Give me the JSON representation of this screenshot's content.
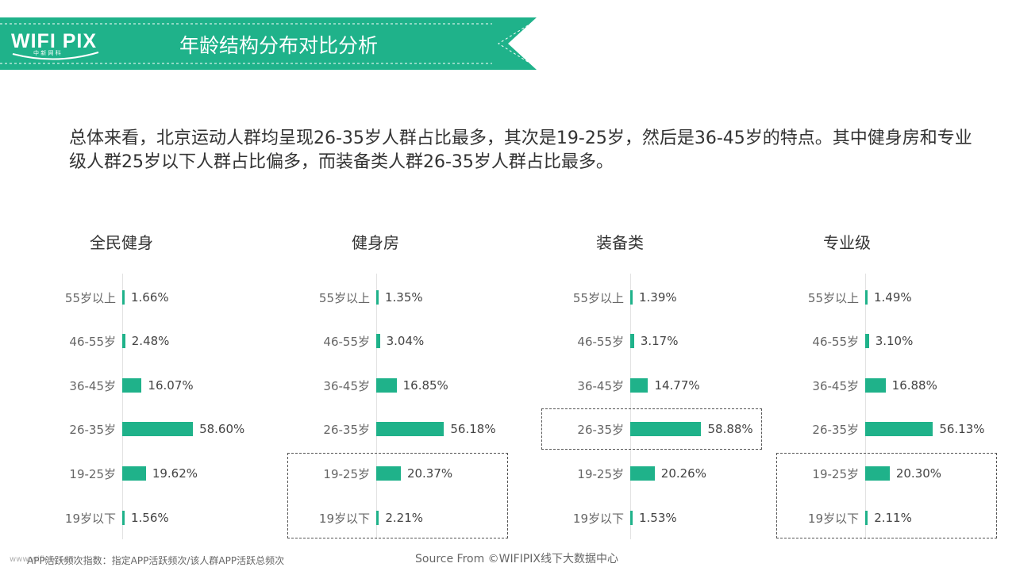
{
  "header": {
    "logo_text": "WIFI PIX",
    "logo_subtext": "中 新 网 科",
    "title": "年龄结构分布对比分析"
  },
  "summary": "总体来看，北京运动人群均呈现26-35岁人群占比最多，其次是19-25岁，然后是36-45岁的特点。其中健身房和专业级人群25岁以下人群占比偏多，而装备类人群26-35岁人群占比最多。",
  "colors": {
    "accent": "#1fb28a",
    "banner": "#1fb28a"
  },
  "chart_data": [
    {
      "type": "bar",
      "title": "全民健身",
      "categories": [
        "55岁以上",
        "46-55岁",
        "36-45岁",
        "26-35岁",
        "19-25岁",
        "19岁以下"
      ],
      "values": [
        1.66,
        2.48,
        16.07,
        58.6,
        19.62,
        1.56
      ],
      "labels": [
        "1.66%",
        "2.48%",
        "16.07%",
        "58.60%",
        "19.62%",
        "1.56%"
      ],
      "highlight": []
    },
    {
      "type": "bar",
      "title": "健身房",
      "categories": [
        "55岁以上",
        "46-55岁",
        "36-45岁",
        "26-35岁",
        "19-25岁",
        "19岁以下"
      ],
      "values": [
        1.35,
        3.04,
        16.85,
        56.18,
        20.37,
        2.21
      ],
      "labels": [
        "1.35%",
        "3.04%",
        "16.85%",
        "56.18%",
        "20.37%",
        "2.21%"
      ],
      "highlight": [
        "19-25岁",
        "19岁以下"
      ]
    },
    {
      "type": "bar",
      "title": "装备类",
      "categories": [
        "55岁以上",
        "46-55岁",
        "36-45岁",
        "26-35岁",
        "19-25岁",
        "19岁以下"
      ],
      "values": [
        1.39,
        3.17,
        14.77,
        58.88,
        20.26,
        1.53
      ],
      "labels": [
        "1.39%",
        "3.17%",
        "14.77%",
        "58.88%",
        "20.26%",
        "1.53%"
      ],
      "highlight": [
        "26-35岁"
      ]
    },
    {
      "type": "bar",
      "title": "专业级",
      "categories": [
        "55岁以上",
        "46-55岁",
        "36-45岁",
        "26-35岁",
        "19-25岁",
        "19岁以下"
      ],
      "values": [
        1.49,
        3.1,
        16.88,
        56.13,
        20.3,
        2.11
      ],
      "labels": [
        "1.49%",
        "3.10%",
        "16.88%",
        "56.13%",
        "20.30%",
        "2.11%"
      ],
      "highlight": [
        "19-25岁",
        "19岁以下"
      ]
    }
  ],
  "footer": {
    "watermark": "www.wifipix.com",
    "footnote": "APP活跃频次指数：指定APP活跃频次/该人群APP活跃总频次",
    "source": "Source From ©WIFIPIX线下大数据中心"
  }
}
